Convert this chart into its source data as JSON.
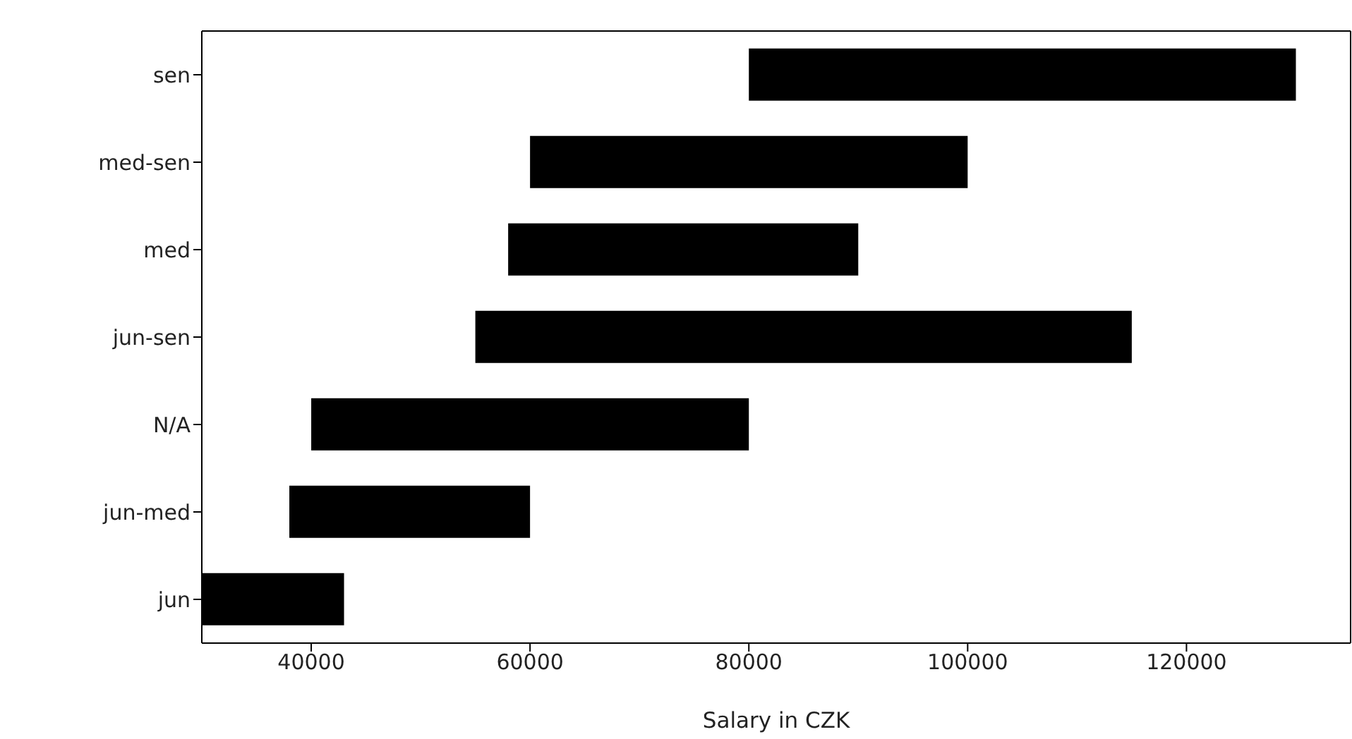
{
  "chart_data": {
    "type": "bar",
    "orientation": "horizontal",
    "xlabel": "Salary in CZK",
    "categories": [
      "sen",
      "med-sen",
      "med",
      "jun-sen",
      "N/A",
      "jun-med",
      "jun"
    ],
    "base": [
      80000,
      60000,
      58000,
      55000,
      40000,
      38000,
      30000
    ],
    "values": [
      50000,
      40000,
      32000,
      60000,
      40000,
      22000,
      13000
    ],
    "color": "#000000",
    "xlim": [
      30000,
      135000
    ],
    "xticks": [
      40000,
      60000,
      80000,
      100000,
      120000
    ],
    "grid": false,
    "legend": false
  }
}
